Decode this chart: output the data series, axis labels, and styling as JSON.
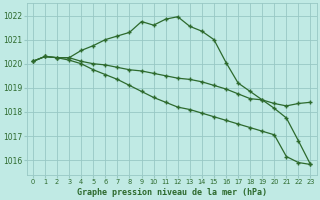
{
  "x": [
    0,
    1,
    2,
    3,
    4,
    5,
    6,
    7,
    8,
    9,
    10,
    11,
    12,
    13,
    14,
    15,
    16,
    17,
    18,
    19,
    20,
    21,
    22,
    23
  ],
  "line1": [
    1020.1,
    1020.3,
    1020.25,
    1020.25,
    1020.55,
    1020.75,
    1021.0,
    1021.15,
    1021.3,
    1021.75,
    1021.6,
    1021.85,
    1021.95,
    1021.55,
    1021.35,
    1021.0,
    1020.05,
    1019.2,
    1018.85,
    1018.5,
    1018.15,
    1017.75,
    1016.8,
    1015.82
  ],
  "line2": [
    1020.1,
    1020.3,
    1020.25,
    1020.25,
    1020.1,
    1020.0,
    1019.95,
    1019.85,
    1019.75,
    1019.7,
    1019.6,
    1019.5,
    1019.4,
    1019.35,
    1019.25,
    1019.1,
    1018.95,
    1018.75,
    1018.55,
    1018.5,
    1018.35,
    1018.25,
    1018.35,
    1018.4
  ],
  "line3": [
    1020.1,
    1020.3,
    1020.25,
    1020.15,
    1020.0,
    1019.75,
    1019.55,
    1019.35,
    1019.1,
    1018.85,
    1018.6,
    1018.4,
    1018.2,
    1018.1,
    1017.95,
    1017.8,
    1017.65,
    1017.5,
    1017.35,
    1017.2,
    1017.05,
    1016.15,
    1015.9,
    1015.82
  ],
  "line_color": "#2d6a2d",
  "bg_color": "#c0eae4",
  "grid_color": "#98c8c4",
  "ylabel_ticks": [
    1016,
    1017,
    1018,
    1019,
    1020,
    1021,
    1022
  ],
  "xlabel_ticks": [
    0,
    1,
    2,
    3,
    4,
    5,
    6,
    7,
    8,
    9,
    10,
    11,
    12,
    13,
    14,
    15,
    16,
    17,
    18,
    19,
    20,
    21,
    22,
    23
  ],
  "xlabel": "Graphe pression niveau de la mer (hPa)",
  "ylim": [
    1015.4,
    1022.5
  ],
  "xlim": [
    -0.5,
    23.5
  ]
}
